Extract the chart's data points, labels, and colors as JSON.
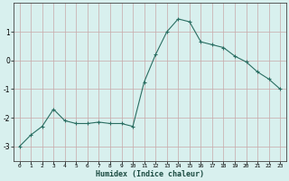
{
  "x": [
    0,
    1,
    2,
    3,
    4,
    5,
    6,
    7,
    8,
    9,
    10,
    11,
    12,
    13,
    14,
    15,
    16,
    17,
    18,
    19,
    20,
    21,
    22,
    23
  ],
  "y": [
    -3.0,
    -2.6,
    -2.3,
    -1.7,
    -2.1,
    -2.2,
    -2.2,
    -2.15,
    -2.2,
    -2.2,
    -2.3,
    -0.75,
    0.2,
    1.0,
    1.45,
    1.35,
    0.65,
    0.55,
    0.45,
    0.15,
    -0.05,
    -0.4,
    -0.65,
    -1.0
  ],
  "xlabel": "Humidex (Indice chaleur)",
  "line_color": "#2a6e62",
  "marker_color": "#2a6e62",
  "bg_color": "#d8f0ee",
  "grid_color": "#c8a8a8",
  "xlim": [
    -0.5,
    23.5
  ],
  "ylim": [
    -3.5,
    2.0
  ],
  "yticks": [
    -3,
    -2,
    -1,
    0,
    1
  ],
  "xticks": [
    0,
    1,
    2,
    3,
    4,
    5,
    6,
    7,
    8,
    9,
    10,
    11,
    12,
    13,
    14,
    15,
    16,
    17,
    18,
    19,
    20,
    21,
    22,
    23
  ]
}
